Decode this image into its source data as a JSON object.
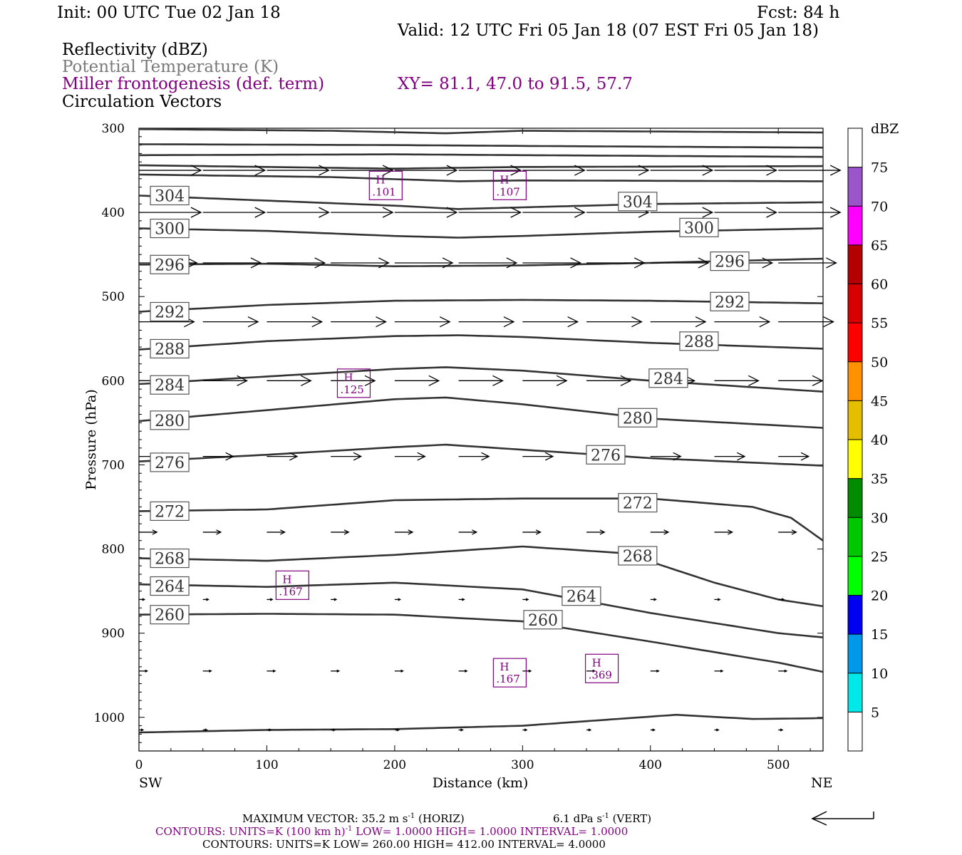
{
  "header": {
    "init": "Init: 00 UTC Tue 02 Jan 18",
    "fcst": "Fcst:   84 h",
    "valid": "Valid: 12 UTC Fri 05 Jan 18 (07 EST Fri 05 Jan 18)",
    "field1": "Reflectivity (dBZ)",
    "field2": "Potential Temperature (K)",
    "field3": "Miller frontogenesis (def. term)",
    "xy": "XY=  81.1, 47.0 to  91.5, 57.7",
    "field4": "Circulation Vectors"
  },
  "colors": {
    "purple": "#800080",
    "theta_gray": "#7a7a7a",
    "contour": "#333333"
  },
  "chart_data": {
    "type": "cross-section",
    "xlabel": "Distance (km)",
    "ylabel": "Pressure (hPa)",
    "xlim": [
      0,
      535
    ],
    "ylim": [
      1040,
      300
    ],
    "y_scale": "linear (inverted)",
    "x_ticks": [
      "0",
      "100",
      "200",
      "300",
      "400",
      "500"
    ],
    "x_tick_values": [
      0,
      100,
      200,
      300,
      400,
      500
    ],
    "y_ticks": [
      "300",
      "400",
      "500",
      "600",
      "700",
      "800",
      "900",
      "1000"
    ],
    "y_tick_values": [
      300,
      400,
      500,
      600,
      700,
      800,
      900,
      1000
    ],
    "left_end_label": "SW",
    "right_end_label": "NE",
    "colorbar": {
      "unit": "dBZ",
      "levels": [
        "5",
        "10",
        "15",
        "20",
        "25",
        "30",
        "35",
        "40",
        "45",
        "50",
        "55",
        "60",
        "65",
        "70",
        "75"
      ],
      "colors": [
        "#ffffff",
        "#00e8e8",
        "#0098e8",
        "#0000f0",
        "#00ff00",
        "#00c800",
        "#008c00",
        "#ffff00",
        "#e6be00",
        "#ff9000",
        "#ff0000",
        "#d60000",
        "#b40000",
        "#ff00ff",
        "#9955c9",
        "#ffffff"
      ]
    },
    "theta_contours": [
      {
        "label": "304",
        "x": [
          0,
          100,
          200,
          250,
          300,
          400,
          535
        ],
        "p": [
          380,
          386,
          392,
          396,
          394,
          390,
          388
        ],
        "labels_at": [
          [
            24,
            380
          ],
          [
            390,
            387
          ]
        ]
      },
      {
        "label": "300",
        "x": [
          0,
          100,
          200,
          250,
          300,
          400,
          535
        ],
        "p": [
          419,
          422,
          428,
          430,
          428,
          423,
          419
        ],
        "labels_at": [
          [
            24,
            419
          ],
          [
            438,
            418
          ]
        ]
      },
      {
        "label": "296",
        "x": [
          0,
          100,
          200,
          300,
          400,
          535
        ],
        "p": [
          462,
          461,
          464,
          463,
          460,
          455
        ],
        "labels_at": [
          [
            24,
            462
          ],
          [
            462,
            458
          ]
        ]
      },
      {
        "label": "292",
        "x": [
          0,
          100,
          200,
          300,
          400,
          535
        ],
        "p": [
          518,
          510,
          505,
          504,
          505,
          508
        ],
        "labels_at": [
          [
            24,
            518
          ],
          [
            462,
            506
          ]
        ]
      },
      {
        "label": "288",
        "x": [
          0,
          100,
          200,
          250,
          300,
          400,
          535
        ],
        "p": [
          563,
          553,
          547,
          546,
          548,
          555,
          562
        ],
        "labels_at": [
          [
            24,
            562
          ],
          [
            438,
            553
          ]
        ]
      },
      {
        "label": "284",
        "x": [
          0,
          100,
          200,
          240,
          300,
          400,
          535
        ],
        "p": [
          604,
          595,
          586,
          584,
          588,
          600,
          613
        ],
        "labels_at": [
          [
            24,
            605
          ],
          [
            414,
            597
          ]
        ]
      },
      {
        "label": "280",
        "x": [
          0,
          100,
          200,
          240,
          300,
          400,
          535
        ],
        "p": [
          648,
          635,
          622,
          620,
          628,
          645,
          656
        ],
        "labels_at": [
          [
            24,
            647
          ],
          [
            390,
            644
          ]
        ]
      },
      {
        "label": "276",
        "x": [
          0,
          100,
          200,
          240,
          300,
          400,
          535
        ],
        "p": [
          696,
          688,
          679,
          676,
          682,
          692,
          701
        ],
        "labels_at": [
          [
            24,
            697
          ],
          [
            365,
            688
          ]
        ]
      },
      {
        "label": "272",
        "x": [
          0,
          100,
          200,
          300,
          400,
          480,
          510,
          535
        ],
        "p": [
          755,
          753,
          742,
          740,
          740,
          750,
          763,
          790
        ],
        "labels_at": [
          [
            24,
            755
          ],
          [
            390,
            745
          ]
        ]
      },
      {
        "label": "268",
        "x": [
          0,
          100,
          200,
          300,
          380,
          450,
          500,
          535
        ],
        "p": [
          811,
          814,
          807,
          797,
          805,
          840,
          860,
          868
        ],
        "labels_at": [
          [
            24,
            811
          ],
          [
            390,
            808
          ]
        ]
      },
      {
        "label": "264",
        "x": [
          0,
          100,
          200,
          300,
          400,
          500,
          535
        ],
        "p": [
          842,
          845,
          840,
          848,
          876,
          900,
          905
        ],
        "labels_at": [
          [
            24,
            844
          ],
          [
            346,
            856
          ]
        ]
      },
      {
        "label": "260",
        "x": [
          0,
          100,
          200,
          300,
          400,
          500,
          535
        ],
        "p": [
          878,
          877,
          878,
          886,
          910,
          935,
          946
        ],
        "labels_at": [
          [
            24,
            878
          ],
          [
            316,
            884
          ]
        ]
      },
      {
        "label": "",
        "x": [
          0,
          100,
          200,
          300,
          420,
          480,
          535
        ],
        "p": [
          1018,
          1015,
          1014,
          1010,
          997,
          1002,
          1001
        ],
        "labels_at": []
      },
      {
        "label": "",
        "x": [
          0,
          200,
          300,
          535
        ],
        "p": [
          332,
          331,
          332,
          334
        ],
        "labels_at": []
      },
      {
        "label": "",
        "x": [
          0,
          200,
          300,
          535
        ],
        "p": [
          344,
          348,
          346,
          345
        ],
        "labels_at": []
      },
      {
        "label": "",
        "x": [
          0,
          150,
          250,
          300,
          535
        ],
        "p": [
          355,
          358,
          363,
          362,
          363
        ],
        "labels_at": []
      },
      {
        "label": "",
        "x": [
          0,
          200,
          300,
          535
        ],
        "p": [
          319,
          320,
          321,
          323
        ],
        "labels_at": []
      },
      {
        "label": "",
        "x": [
          0,
          150,
          240,
          300,
          535
        ],
        "p": [
          301,
          303,
          306,
          303,
          305
        ],
        "labels_at": []
      }
    ],
    "frontogenesis_maxima": [
      {
        "marker": "H",
        "value": ".101",
        "x": 193,
        "p": 368
      },
      {
        "marker": "H",
        "value": ".107",
        "x": 290,
        "p": 368
      },
      {
        "marker": "H",
        "value": ".125",
        "x": 168,
        "p": 603
      },
      {
        "marker": "H",
        "value": ".167",
        "x": 120,
        "p": 843
      },
      {
        "marker": "H",
        "value": ".167",
        "x": 290,
        "p": 947
      },
      {
        "marker": "H",
        "value": ".369",
        "x": 362,
        "p": 942
      }
    ],
    "vector_rows": [
      {
        "p": 350,
        "u": 45,
        "w": 0
      },
      {
        "p": 400,
        "u": 45,
        "w": 0
      },
      {
        "p": 460,
        "u": 42,
        "w": 0
      },
      {
        "p": 530,
        "u": 40,
        "w": 0
      },
      {
        "p": 600,
        "u": 32,
        "w": 0
      },
      {
        "p": 690,
        "u": 22,
        "w": 0
      },
      {
        "p": 780,
        "u": 13,
        "w": 0
      },
      {
        "p": 860,
        "u": 4,
        "w": 0
      },
      {
        "p": 945,
        "u": 6,
        "w": 0
      },
      {
        "p": 1015,
        "u": 3,
        "w": 0
      }
    ],
    "vector_x": [
      0,
      50,
      100,
      150,
      200,
      250,
      300,
      350,
      400,
      450,
      500
    ]
  },
  "footer": {
    "max_vector": "MAXIMUM VECTOR:  35.2 m s",
    "max_vector_exp": "-1",
    "max_vector_h": " (HORIZ)",
    "max_vector_v": "6.1 dPa s",
    "max_vector_v_exp": "-1",
    "max_vector_v_tail": " (VERT)",
    "contours_purple_a": "CONTOURS:  UNITS=K (100 km h)",
    "contours_purple_exp": "-1",
    "contours_purple_b": "  LOW=   1.0000        HIGH=   1.0000        INTERVAL=    1.0000",
    "contours_black": "CONTOURS:  UNITS=K  LOW=  260.00        HIGH=  412.00        INTERVAL=    4.0000"
  }
}
